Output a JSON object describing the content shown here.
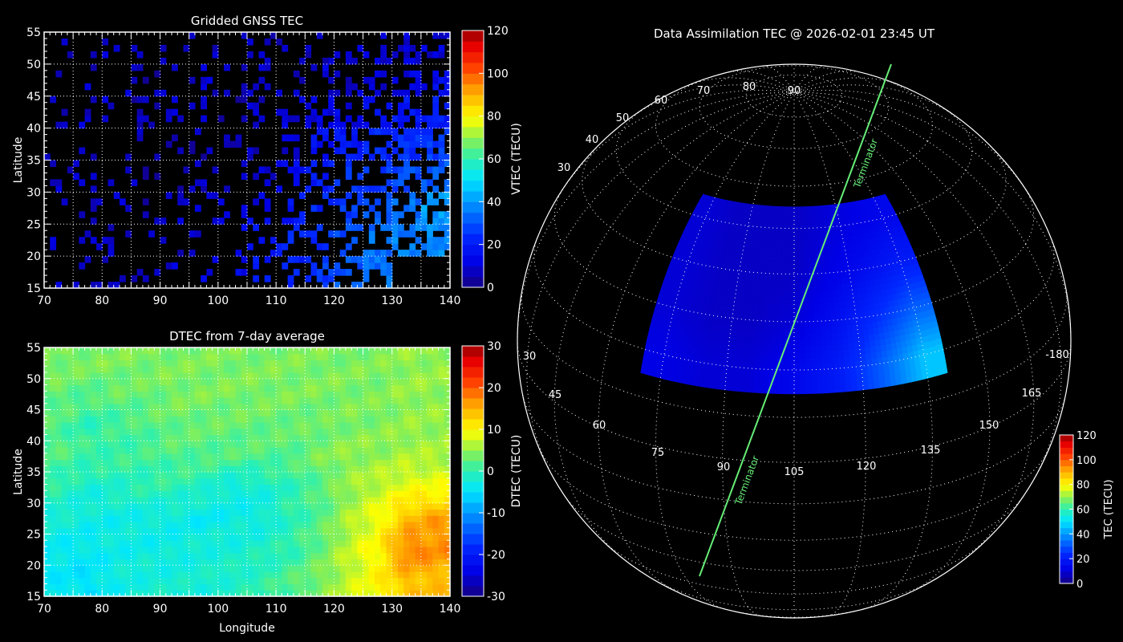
{
  "chart_data": [
    {
      "type": "heatmap",
      "title": "Gridded GNSS TEC",
      "xlabel": "",
      "ylabel": "Latitude",
      "xlim": [
        70,
        140
      ],
      "ylim": [
        15,
        55
      ],
      "x_ticks": [
        "70",
        "80",
        "90",
        "100",
        "110",
        "120",
        "130",
        "140"
      ],
      "y_ticks": [
        "15",
        "20",
        "25",
        "30",
        "35",
        "40",
        "45",
        "50",
        "55"
      ],
      "grid": true,
      "colorbar": {
        "label": "VTEC (TECU)",
        "range": [
          0,
          120
        ],
        "ticks": [
          "0",
          "20",
          "40",
          "60",
          "80",
          "100",
          "120"
        ]
      },
      "cell_bins_deg": 5,
      "lat_bins": [
        "50-55",
        "45-50",
        "40-45",
        "35-40",
        "30-35",
        "25-30",
        "20-25",
        "15-20"
      ],
      "lon_bins": [
        "70-75",
        "75-80",
        "80-85",
        "85-90",
        "90-95",
        "95-100",
        "100-105",
        "105-110",
        "110-115",
        "115-120",
        "120-125",
        "125-130",
        "130-135",
        "135-140"
      ],
      "values": [
        [
          6,
          6,
          8,
          8,
          6,
          8,
          6,
          8,
          8,
          8,
          8,
          10,
          10,
          10
        ],
        [
          8,
          8,
          8,
          6,
          8,
          8,
          8,
          8,
          8,
          10,
          8,
          10,
          12,
          14
        ],
        [
          8,
          8,
          8,
          6,
          8,
          8,
          6,
          8,
          10,
          10,
          12,
          16,
          18,
          20
        ],
        [
          8,
          8,
          6,
          6,
          6,
          6,
          8,
          8,
          10,
          16,
          18,
          22,
          24,
          26
        ],
        [
          8,
          8,
          6,
          6,
          6,
          8,
          8,
          10,
          14,
          20,
          24,
          26,
          28,
          30
        ],
        [
          8,
          8,
          8,
          6,
          8,
          8,
          10,
          12,
          18,
          22,
          26,
          30,
          34,
          40
        ],
        [
          10,
          10,
          8,
          8,
          8,
          10,
          12,
          18,
          22,
          24,
          28,
          34,
          36,
          38
        ],
        [
          10,
          10,
          8,
          8,
          10,
          12,
          14,
          18,
          22,
          26,
          30,
          34,
          null,
          null
        ]
      ],
      "note_coverage": "sparse"
    },
    {
      "type": "heatmap",
      "title": "DTEC from 7-day average",
      "xlabel": "Longitude",
      "ylabel": "Latitude",
      "xlim": [
        70,
        140
      ],
      "ylim": [
        15,
        55
      ],
      "x_ticks": [
        "70",
        "80",
        "90",
        "100",
        "110",
        "120",
        "130",
        "140"
      ],
      "y_ticks": [
        "15",
        "20",
        "25",
        "30",
        "35",
        "40",
        "45",
        "50",
        "55"
      ],
      "grid": true,
      "colorbar": {
        "label": "DTEC (TECU)",
        "range": [
          -30,
          30
        ],
        "ticks": [
          "-30",
          "-20",
          "-10",
          "0",
          "10",
          "20",
          "30"
        ]
      },
      "cell_bins_deg": 5,
      "values": [
        [
          4,
          4,
          4,
          4,
          4,
          4,
          4,
          4,
          4,
          4,
          4,
          4,
          5,
          5
        ],
        [
          3,
          2,
          3,
          3,
          4,
          4,
          4,
          4,
          4,
          4,
          4,
          4,
          5,
          5
        ],
        [
          2,
          0,
          1,
          2,
          3,
          3,
          3,
          3,
          3,
          3,
          4,
          4,
          5,
          5
        ],
        [
          2,
          1,
          1,
          1,
          2,
          2,
          2,
          2,
          2,
          4,
          5,
          5,
          6,
          6
        ],
        [
          0,
          -2,
          -1,
          0,
          0,
          -1,
          -3,
          -2,
          0,
          2,
          5,
          7,
          9,
          9
        ],
        [
          -2,
          -3,
          -3,
          -3,
          -3,
          -4,
          -3,
          -3,
          0,
          2,
          6,
          9,
          14,
          16
        ],
        [
          -4,
          -4,
          -3,
          -3,
          -3,
          -2,
          -2,
          -1,
          0,
          3,
          7,
          10,
          18,
          17
        ],
        [
          -4,
          -5,
          -3,
          -2,
          -2,
          -2,
          -1,
          0,
          2,
          4,
          7,
          10,
          14,
          14
        ]
      ]
    },
    {
      "type": "heatmap",
      "title": "Data Assimilation TEC @ 2026-02-01 23:45 UT",
      "projection": "orthographic",
      "region": {
        "lon": [
          70,
          140
        ],
        "lat": [
          15,
          55
        ]
      },
      "cell_bins_deg": 10,
      "values": [
        [
          10,
          8,
          8,
          8,
          10,
          12,
          14
        ],
        [
          10,
          8,
          8,
          8,
          12,
          16,
          20
        ],
        [
          10,
          8,
          8,
          10,
          16,
          24,
          32
        ],
        [
          12,
          10,
          10,
          14,
          20,
          32,
          46
        ]
      ],
      "colorbar": {
        "label": "TEC (TECU)",
        "range": [
          0,
          120
        ],
        "ticks": [
          "0",
          "20",
          "40",
          "60",
          "80",
          "100",
          "120"
        ]
      },
      "lon_labels": [
        "30",
        "45",
        "60",
        "75",
        "90",
        "105",
        "120",
        "135",
        "150",
        "165",
        "-180"
      ],
      "lat_labels": [
        "30",
        "40",
        "50",
        "60",
        "70",
        "80",
        "90"
      ],
      "terminator_label": "Terminator",
      "terminator_color": "#66ee77"
    }
  ]
}
